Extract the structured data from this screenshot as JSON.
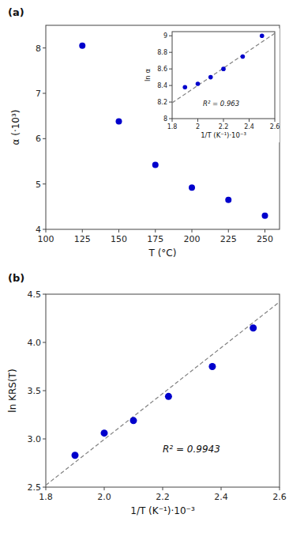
{
  "chart_data": [
    {
      "type": "scatter",
      "title": "(a)",
      "x_label": "T (°C)",
      "y_label": "α (·10³)",
      "x": [
        125,
        150,
        175,
        200,
        225,
        250
      ],
      "values": [
        8.05,
        6.38,
        5.42,
        4.92,
        4.65,
        4.3
      ],
      "color": "#0000CC",
      "xlim": [
        100,
        260
      ],
      "ylim": [
        4.0,
        8.5
      ],
      "xticks": [
        100,
        125,
        150,
        175,
        200,
        225,
        250
      ],
      "yticks": [
        4,
        5,
        6,
        7,
        8
      ],
      "grid": false
    },
    {
      "type": "scatter",
      "x_label": "1/T (K⁻¹)·10⁻³",
      "y_label": "ln α",
      "annotation": "R² = 0.963",
      "series": [
        {
          "type": "scatter",
          "color": "#0000CC",
          "x": [
            1.9,
            2.0,
            2.1,
            2.2,
            2.35,
            2.5
          ],
          "values": [
            8.38,
            8.42,
            8.5,
            8.6,
            8.75,
            9.0
          ]
        },
        {
          "type": "line",
          "color": "gray",
          "line_style": "dashed",
          "x": [
            1.8,
            2.6
          ],
          "values": [
            8.19,
            9.03
          ]
        }
      ],
      "xlim": [
        1.8,
        2.6
      ],
      "ylim": [
        8.0,
        9.05
      ],
      "xticks": [
        1.8,
        2,
        2.2,
        2.4,
        2.6
      ],
      "yticks": [
        8,
        8.2,
        8.4,
        8.6,
        8.8,
        9
      ],
      "grid": false
    },
    {
      "type": "scatter",
      "title": "(b)",
      "x_label": "1/T (K⁻¹)·10⁻³",
      "y_label": "ln KRS(T)",
      "annotation": "R² = 0.9943",
      "series": [
        {
          "type": "scatter",
          "color": "#0000CC",
          "x": [
            1.9,
            2.0,
            2.1,
            2.22,
            2.37,
            2.51
          ],
          "values": [
            2.83,
            3.06,
            3.19,
            3.44,
            3.75,
            4.15
          ]
        },
        {
          "type": "line",
          "color": "gray",
          "line_style": "dashed",
          "x": [
            1.8,
            2.6
          ],
          "values": [
            2.52,
            4.42
          ]
        }
      ],
      "xlim": [
        1.8,
        2.6
      ],
      "ylim": [
        2.5,
        4.5
      ],
      "xticks": [
        1.8,
        {
          "value": 2.0,
          "label": "2.0"
        },
        2.2,
        2.4,
        2.6
      ],
      "yticks": [
        2.5,
        {
          "value": 3.0,
          "label": "3.0"
        },
        3.5,
        {
          "value": 4.0,
          "label": "4.0"
        },
        4.5
      ],
      "grid": false
    }
  ]
}
